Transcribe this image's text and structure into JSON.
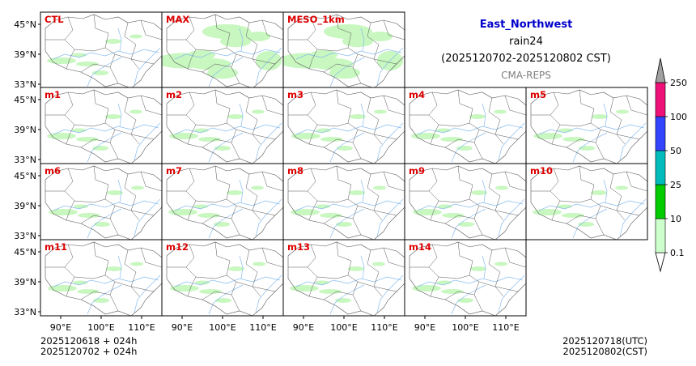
{
  "header": {
    "region": "East_Northwest",
    "variable": "rain24",
    "period": "(2025120702-2025120802 CST)",
    "source": "CMA-REPS"
  },
  "panels": [
    "CTL",
    "MAX",
    "MESO_1km",
    "m1",
    "m2",
    "m3",
    "m4",
    "m5",
    "m6",
    "m7",
    "m8",
    "m9",
    "m10",
    "m11",
    "m12",
    "m13",
    "m14"
  ],
  "axes": {
    "lat_ticks": [
      "45°N",
      "39°N",
      "33°N"
    ],
    "lon_ticks": [
      "90°E",
      "100°E",
      "110°E"
    ]
  },
  "footer": {
    "left_line1": "2025120618  +  024h",
    "left_line2": "2025120702  +  024h",
    "right_line1": "2025120718(UTC)",
    "right_line2": "2025120802(CST)"
  },
  "colorbar": {
    "levels": [
      "0.1",
      "10",
      "25",
      "50",
      "100",
      "250"
    ],
    "colors": [
      "#ccffcc",
      "#00cc00",
      "#00bbbb",
      "#3344ff",
      "#ee1177",
      "#a0a0a0"
    ]
  },
  "colors": {
    "label": "#dd0000",
    "border": "#555555",
    "river": "#88bbee",
    "rain": "#c8f7c0"
  }
}
